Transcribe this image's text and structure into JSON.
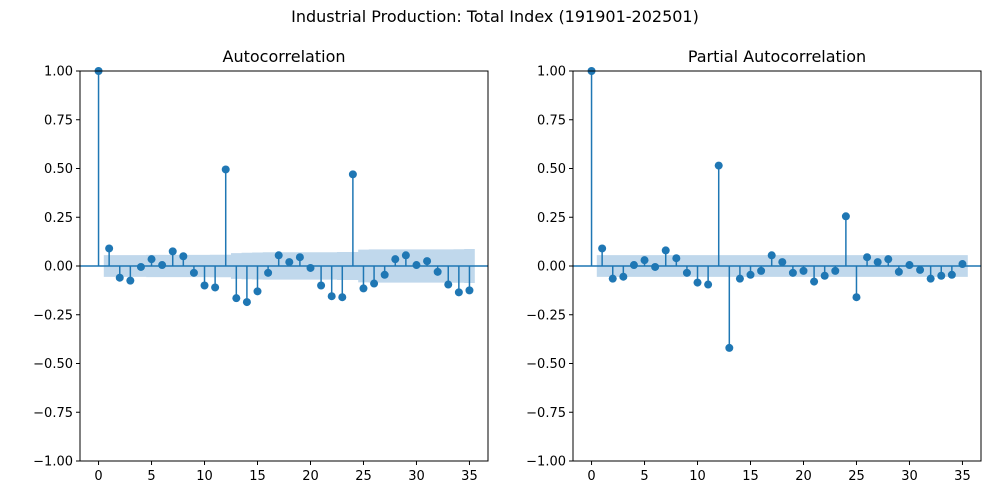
{
  "suptitle": "Industrial Production: Total Index (191901-202501)",
  "colors": {
    "stem": "#1f77b4",
    "band": "#c0d8ec",
    "axis": "#000000"
  },
  "chart_data": [
    {
      "type": "stem",
      "title": "Autocorrelation",
      "xlim": [
        -1.75,
        36.75
      ],
      "ylim": [
        -1.0,
        1.0
      ],
      "xticks": [
        0,
        5,
        10,
        15,
        20,
        25,
        30,
        35
      ],
      "yticks": [
        -1.0,
        -0.75,
        -0.5,
        -0.25,
        0.0,
        0.25,
        0.5,
        0.75,
        1.0
      ],
      "ytick_labels": [
        "−1.00",
        "−0.75",
        "−0.50",
        "−0.25",
        "0.00",
        "0.25",
        "0.50",
        "0.75",
        "1.00"
      ],
      "lags": [
        0,
        1,
        2,
        3,
        4,
        5,
        6,
        7,
        8,
        9,
        10,
        11,
        12,
        13,
        14,
        15,
        16,
        17,
        18,
        19,
        20,
        21,
        22,
        23,
        24,
        25,
        26,
        27,
        28,
        29,
        30,
        31,
        32,
        33,
        34,
        35
      ],
      "values": [
        1.0,
        0.09,
        -0.06,
        -0.075,
        -0.005,
        0.035,
        0.005,
        0.075,
        0.05,
        -0.035,
        -0.1,
        -0.11,
        0.495,
        -0.165,
        -0.185,
        -0.13,
        -0.035,
        0.055,
        0.02,
        0.045,
        -0.01,
        -0.1,
        -0.155,
        -0.16,
        0.47,
        -0.115,
        -0.09,
        -0.045,
        0.035,
        0.055,
        0.005,
        0.025,
        -0.03,
        -0.095,
        -0.135,
        -0.125
      ],
      "confint_upper": [
        0,
        0.056,
        0.056,
        0.056,
        0.056,
        0.057,
        0.057,
        0.057,
        0.057,
        0.057,
        0.057,
        0.058,
        0.058,
        0.066,
        0.068,
        0.069,
        0.07,
        0.07,
        0.07,
        0.07,
        0.07,
        0.07,
        0.07,
        0.072,
        0.072,
        0.084,
        0.085,
        0.085,
        0.085,
        0.085,
        0.085,
        0.085,
        0.085,
        0.085,
        0.086,
        0.087
      ]
    },
    {
      "type": "stem",
      "title": "Partial Autocorrelation",
      "xlim": [
        -1.75,
        36.75
      ],
      "ylim": [
        -1.0,
        1.0
      ],
      "xticks": [
        0,
        5,
        10,
        15,
        20,
        25,
        30,
        35
      ],
      "yticks": [
        -1.0,
        -0.75,
        -0.5,
        -0.25,
        0.0,
        0.25,
        0.5,
        0.75,
        1.0
      ],
      "ytick_labels": [
        "−1.00",
        "−0.75",
        "−0.50",
        "−0.25",
        "0.00",
        "0.25",
        "0.50",
        "0.75",
        "1.00"
      ],
      "lags": [
        0,
        1,
        2,
        3,
        4,
        5,
        6,
        7,
        8,
        9,
        10,
        11,
        12,
        13,
        14,
        15,
        16,
        17,
        18,
        19,
        20,
        21,
        22,
        23,
        24,
        25,
        26,
        27,
        28,
        29,
        30,
        31,
        32,
        33,
        34,
        35
      ],
      "values": [
        1.0,
        0.09,
        -0.065,
        -0.055,
        0.005,
        0.03,
        -0.005,
        0.08,
        0.04,
        -0.035,
        -0.085,
        -0.095,
        0.515,
        -0.42,
        -0.065,
        -0.045,
        -0.025,
        0.055,
        0.02,
        -0.035,
        -0.025,
        -0.08,
        -0.05,
        -0.025,
        0.255,
        -0.16,
        0.045,
        0.02,
        0.035,
        -0.03,
        0.005,
        -0.02,
        -0.065,
        -0.05,
        -0.045,
        0.01
      ],
      "confint_upper": [
        0,
        0.056,
        0.056,
        0.056,
        0.056,
        0.056,
        0.056,
        0.056,
        0.056,
        0.056,
        0.056,
        0.056,
        0.056,
        0.056,
        0.056,
        0.056,
        0.056,
        0.056,
        0.056,
        0.056,
        0.056,
        0.056,
        0.056,
        0.056,
        0.056,
        0.056,
        0.056,
        0.056,
        0.056,
        0.056,
        0.056,
        0.056,
        0.056,
        0.056,
        0.056,
        0.056
      ]
    }
  ]
}
